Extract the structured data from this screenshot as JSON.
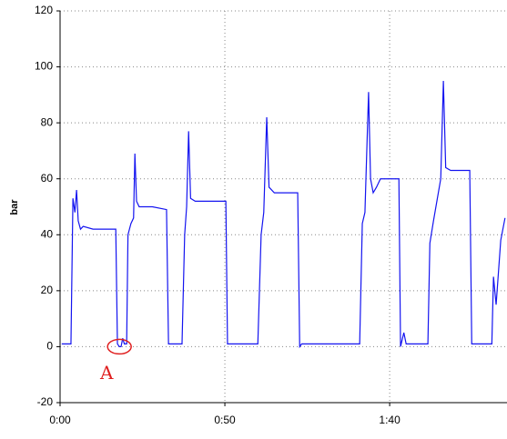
{
  "chart_data": {
    "type": "line",
    "y_label": "bar",
    "x": [
      0.5,
      3.3,
      3.9,
      4.5,
      5,
      5.5,
      6.2,
      7,
      10,
      14,
      16.9,
      17.4,
      18,
      18.5,
      19,
      19.5,
      20.2,
      20.6,
      21.5,
      22.3,
      22.7,
      23.2,
      24,
      28,
      32.3,
      32.9,
      37,
      37.8,
      38.4,
      39,
      39.6,
      41,
      46,
      50.3,
      50.8,
      60,
      61,
      61.8,
      62.7,
      63.4,
      65,
      72.1,
      72.7,
      73.3,
      90.9,
      91.7,
      92.5,
      92.8,
      93.6,
      94.2,
      95,
      96,
      97.2,
      102.8,
      103.3,
      104.3,
      105,
      111.6,
      112.2,
      113.3,
      115.5,
      116.3,
      117,
      118.5,
      124.3,
      124.9,
      131,
      131.5,
      132.3,
      133.7,
      135
    ],
    "series": [
      {
        "color": "#1414f0",
        "values": [
          1,
          1,
          53,
          48,
          56,
          45,
          42,
          43,
          42,
          42,
          42,
          1,
          0,
          0,
          3,
          1,
          1,
          40,
          44,
          46,
          69,
          52,
          50,
          50,
          49,
          1,
          1,
          40,
          50,
          77,
          53,
          52,
          52,
          52,
          1,
          1,
          40,
          48,
          82,
          57,
          55,
          55,
          0,
          1,
          1,
          44,
          48,
          60,
          91,
          60,
          55,
          57,
          60,
          60,
          0,
          5,
          1,
          1,
          37,
          45,
          60,
          95,
          64,
          63,
          63,
          1,
          1,
          25,
          15,
          38,
          46
        ]
      }
    ],
    "xlim": [
      0,
      135.6
    ],
    "xticks": [
      {
        "value": 0,
        "label": "0:00"
      },
      {
        "value": 50,
        "label": "0:50"
      },
      {
        "value": 100,
        "label": "1:40"
      }
    ],
    "ylim": [
      -20,
      120
    ],
    "yticks": [
      -20,
      0,
      20,
      40,
      60,
      80,
      100,
      120
    ],
    "grid": true,
    "annotations": [
      {
        "text": "A",
        "x": 18,
        "y": 0,
        "color": "#e02020"
      }
    ]
  }
}
